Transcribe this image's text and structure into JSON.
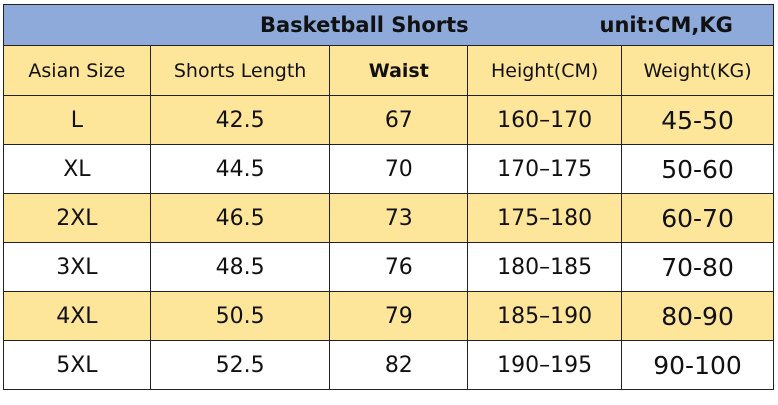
{
  "title": "Basketball Shorts",
  "unit": "unit:CM,KG",
  "headers": [
    "Asian Size",
    "Shorts Length",
    "Waist",
    "Height(CM)",
    "Weight(KG)"
  ],
  "rows": [
    [
      "L",
      "42.5",
      "67",
      "160–170",
      "45-50"
    ],
    [
      "XL",
      "44.5",
      "70",
      "170–175",
      "50-60"
    ],
    [
      "2XL",
      "46.5",
      "73",
      "175–180",
      "60-70"
    ],
    [
      "3XL",
      "48.5",
      "76",
      "180–185",
      "70-80"
    ],
    [
      "4XL",
      "50.5",
      "79",
      "185–190",
      "80-90"
    ],
    [
      "5XL",
      "52.5",
      "82",
      "190–195",
      "90-100"
    ]
  ],
  "colors": {
    "title_bg": "#8eaadb",
    "highlight_bg": "#fde59a"
  }
}
